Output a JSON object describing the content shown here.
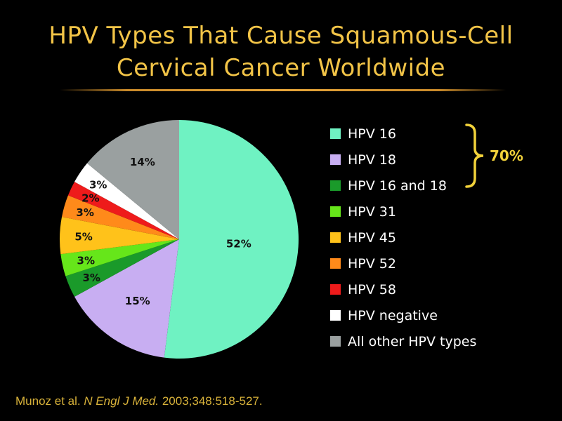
{
  "title_lines": [
    "HPV Types That Cause Squamous-Cell",
    "Cervical Cancer Worldwide"
  ],
  "chart_data": {
    "type": "pie",
    "slices": [
      {
        "label": "HPV 16",
        "value": 52,
        "value_label": "52%",
        "color": "#6ff2c2"
      },
      {
        "label": "HPV 18",
        "value": 15,
        "value_label": "15%",
        "color": "#c8aef2"
      },
      {
        "label": "HPV 16 and 18",
        "value": 3,
        "value_label": "3%",
        "color": "#1a9a2a"
      },
      {
        "label": "HPV 31",
        "value": 3,
        "value_label": "3%",
        "color": "#66e61a"
      },
      {
        "label": "HPV 45",
        "value": 5,
        "value_label": "5%",
        "color": "#ffc21a"
      },
      {
        "label": "HPV 52",
        "value": 3,
        "value_label": "3%",
        "color": "#ff8a1a"
      },
      {
        "label": "HPV 58",
        "value": 2,
        "value_label": "2%",
        "color": "#ee1b1b"
      },
      {
        "label": "HPV negative",
        "value": 3,
        "value_label": "3%",
        "color": "#ffffff"
      },
      {
        "label": "All other HPV types",
        "value": 14,
        "value_label": "14%",
        "color": "#9aa0a0"
      }
    ],
    "bracket": {
      "label": "70%",
      "covers": [
        "HPV 16",
        "HPV 18",
        "HPV 16 and 18"
      ]
    },
    "legend_position": "right"
  },
  "citation": {
    "authors": "Munoz et al.",
    "journal": "N Engl J Med.",
    "ref": "2003;348:518-527."
  },
  "colors": {
    "title": "#f2c447",
    "bracket": "#f2d23a",
    "citation": "#d8b23a",
    "background": "#000000"
  }
}
